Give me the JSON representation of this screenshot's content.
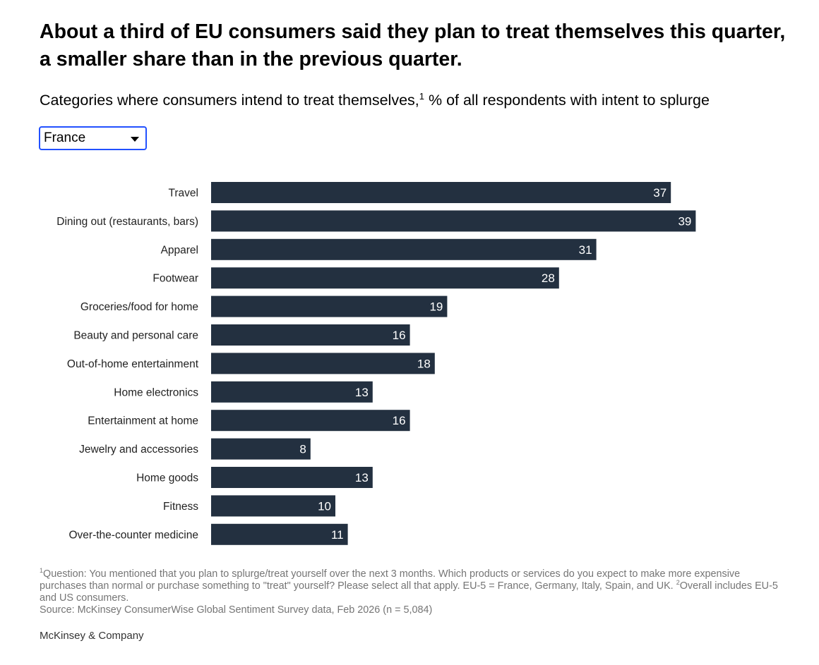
{
  "title": "About a third of EU consumers said they plan to treat themselves this quarter, a smaller share than in the previous quarter.",
  "subtitle": {
    "text": "Categories where consumers intend to treat themselves,",
    "footnote_ref": "1",
    "unit": " % of all respondents with intent to splurge"
  },
  "filter": {
    "selected": "France"
  },
  "chart_data": {
    "type": "bar",
    "orientation": "horizontal",
    "categories": [
      "Travel",
      "Dining out (restaurants, bars)",
      "Apparel",
      "Footwear",
      "Groceries/food for home",
      "Beauty and personal care",
      "Out-of-home entertainment",
      "Home electronics",
      "Entertainment at home",
      "Jewelry and accessories",
      "Home goods",
      "Fitness",
      "Over-the-counter medicine"
    ],
    "values": [
      37,
      39,
      31,
      28,
      19,
      16,
      18,
      13,
      16,
      8,
      13,
      10,
      11
    ],
    "xlim": [
      0,
      40
    ],
    "grid": false,
    "legend": "none",
    "data_labels": "inside-end",
    "colors": {
      "bar": "#233040",
      "label_text": "#ffffff",
      "category_text": "#222222"
    }
  },
  "footnotes": {
    "note1_ref": "1",
    "note1_text": "Question: You mentioned that you plan to splurge/treat yourself over the next 3 months. Which products or services do you expect to make more expensive purchases than normal or purchase something to \"treat\" yourself? Please select all that apply. EU-5 = France, Germany, Italy, Spain, and UK.",
    "note2_ref": "2",
    "note2_text": "Overall includes EU-5 and US consumers.",
    "source": "Source: McKinsey ConsumerWise Global Sentiment Survey data, Feb 2026 (n = 5,084)"
  },
  "brand": "McKinsey & Company"
}
